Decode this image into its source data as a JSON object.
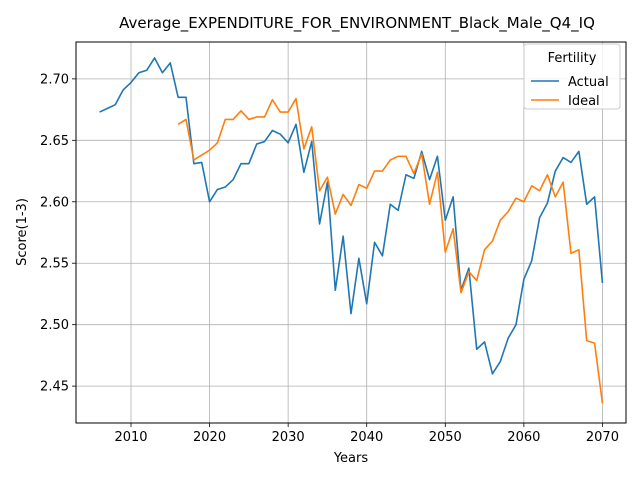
{
  "chart_data": {
    "type": "line",
    "title": "Average_EXPENDITURE_FOR_ENVIRONMENT_Black_Male_Q4_IQ",
    "xlabel": "Years",
    "ylabel": "Score(1-3)",
    "xlim": [
      2003,
      2073
    ],
    "ylim": [
      2.42,
      2.73
    ],
    "xticks": [
      2010,
      2020,
      2030,
      2040,
      2050,
      2060,
      2070
    ],
    "yticks": [
      2.45,
      2.5,
      2.55,
      2.6,
      2.65,
      2.7
    ],
    "ytick_labels": [
      "2.45",
      "2.50",
      "2.55",
      "2.60",
      "2.65",
      "2.70"
    ],
    "grid": true,
    "legend": {
      "title": "Fertility",
      "position": "top-right"
    },
    "series": [
      {
        "name": "Actual",
        "color": "#1f77b4",
        "points": [
          [
            2006,
            2.673
          ],
          [
            2007,
            2.676
          ],
          [
            2008,
            2.679
          ],
          [
            2009,
            2.691
          ],
          [
            2010,
            2.697
          ],
          [
            2011,
            2.705
          ],
          [
            2012,
            2.707
          ],
          [
            2013,
            2.717
          ],
          [
            2014,
            2.705
          ],
          [
            2015,
            2.713
          ],
          [
            2016,
            2.685
          ],
          [
            2017,
            2.685
          ],
          [
            2018,
            2.631
          ],
          [
            2019,
            2.632
          ],
          [
            2020,
            2.6
          ],
          [
            2021,
            2.61
          ],
          [
            2022,
            2.612
          ],
          [
            2023,
            2.618
          ],
          [
            2024,
            2.631
          ],
          [
            2025,
            2.631
          ],
          [
            2026,
            2.647
          ],
          [
            2027,
            2.649
          ],
          [
            2028,
            2.658
          ],
          [
            2029,
            2.655
          ],
          [
            2030,
            2.648
          ],
          [
            2031,
            2.663
          ],
          [
            2032,
            2.624
          ],
          [
            2033,
            2.649
          ],
          [
            2034,
            2.582
          ],
          [
            2035,
            2.616
          ],
          [
            2036,
            2.528
          ],
          [
            2037,
            2.572
          ],
          [
            2038,
            2.509
          ],
          [
            2039,
            2.554
          ],
          [
            2040,
            2.517
          ],
          [
            2041,
            2.567
          ],
          [
            2042,
            2.556
          ],
          [
            2043,
            2.598
          ],
          [
            2044,
            2.593
          ],
          [
            2045,
            2.622
          ],
          [
            2046,
            2.619
          ],
          [
            2047,
            2.641
          ],
          [
            2048,
            2.618
          ],
          [
            2049,
            2.637
          ],
          [
            2050,
            2.585
          ],
          [
            2051,
            2.604
          ],
          [
            2052,
            2.528
          ],
          [
            2053,
            2.546
          ],
          [
            2054,
            2.48
          ],
          [
            2055,
            2.486
          ],
          [
            2056,
            2.46
          ],
          [
            2057,
            2.47
          ],
          [
            2058,
            2.489
          ],
          [
            2059,
            2.5
          ],
          [
            2060,
            2.537
          ],
          [
            2061,
            2.552
          ],
          [
            2062,
            2.587
          ],
          [
            2063,
            2.599
          ],
          [
            2064,
            2.625
          ],
          [
            2065,
            2.636
          ],
          [
            2066,
            2.632
          ],
          [
            2067,
            2.641
          ],
          [
            2068,
            2.598
          ],
          [
            2069,
            2.604
          ],
          [
            2070,
            2.534
          ]
        ]
      },
      {
        "name": "Ideal",
        "color": "#ff7f0e",
        "points": [
          [
            2016,
            2.663
          ],
          [
            2017,
            2.667
          ],
          [
            2018,
            2.634
          ],
          [
            2019,
            2.638
          ],
          [
            2020,
            2.642
          ],
          [
            2021,
            2.648
          ],
          [
            2022,
            2.667
          ],
          [
            2023,
            2.667
          ],
          [
            2024,
            2.674
          ],
          [
            2025,
            2.667
          ],
          [
            2026,
            2.669
          ],
          [
            2027,
            2.669
          ],
          [
            2028,
            2.683
          ],
          [
            2029,
            2.673
          ],
          [
            2030,
            2.673
          ],
          [
            2031,
            2.684
          ],
          [
            2032,
            2.643
          ],
          [
            2033,
            2.661
          ],
          [
            2034,
            2.609
          ],
          [
            2035,
            2.62
          ],
          [
            2036,
            2.59
          ],
          [
            2037,
            2.606
          ],
          [
            2038,
            2.597
          ],
          [
            2039,
            2.614
          ],
          [
            2040,
            2.611
          ],
          [
            2041,
            2.625
          ],
          [
            2042,
            2.625
          ],
          [
            2043,
            2.634
          ],
          [
            2044,
            2.637
          ],
          [
            2045,
            2.637
          ],
          [
            2046,
            2.623
          ],
          [
            2047,
            2.639
          ],
          [
            2048,
            2.598
          ],
          [
            2049,
            2.624
          ],
          [
            2050,
            2.559
          ],
          [
            2051,
            2.578
          ],
          [
            2052,
            2.526
          ],
          [
            2053,
            2.543
          ],
          [
            2054,
            2.536
          ],
          [
            2055,
            2.561
          ],
          [
            2056,
            2.568
          ],
          [
            2057,
            2.585
          ],
          [
            2058,
            2.592
          ],
          [
            2059,
            2.603
          ],
          [
            2060,
            2.6
          ],
          [
            2061,
            2.613
          ],
          [
            2062,
            2.609
          ],
          [
            2063,
            2.622
          ],
          [
            2064,
            2.604
          ],
          [
            2065,
            2.616
          ],
          [
            2066,
            2.558
          ],
          [
            2067,
            2.561
          ],
          [
            2068,
            2.487
          ],
          [
            2069,
            2.485
          ],
          [
            2070,
            2.436
          ]
        ]
      }
    ]
  }
}
